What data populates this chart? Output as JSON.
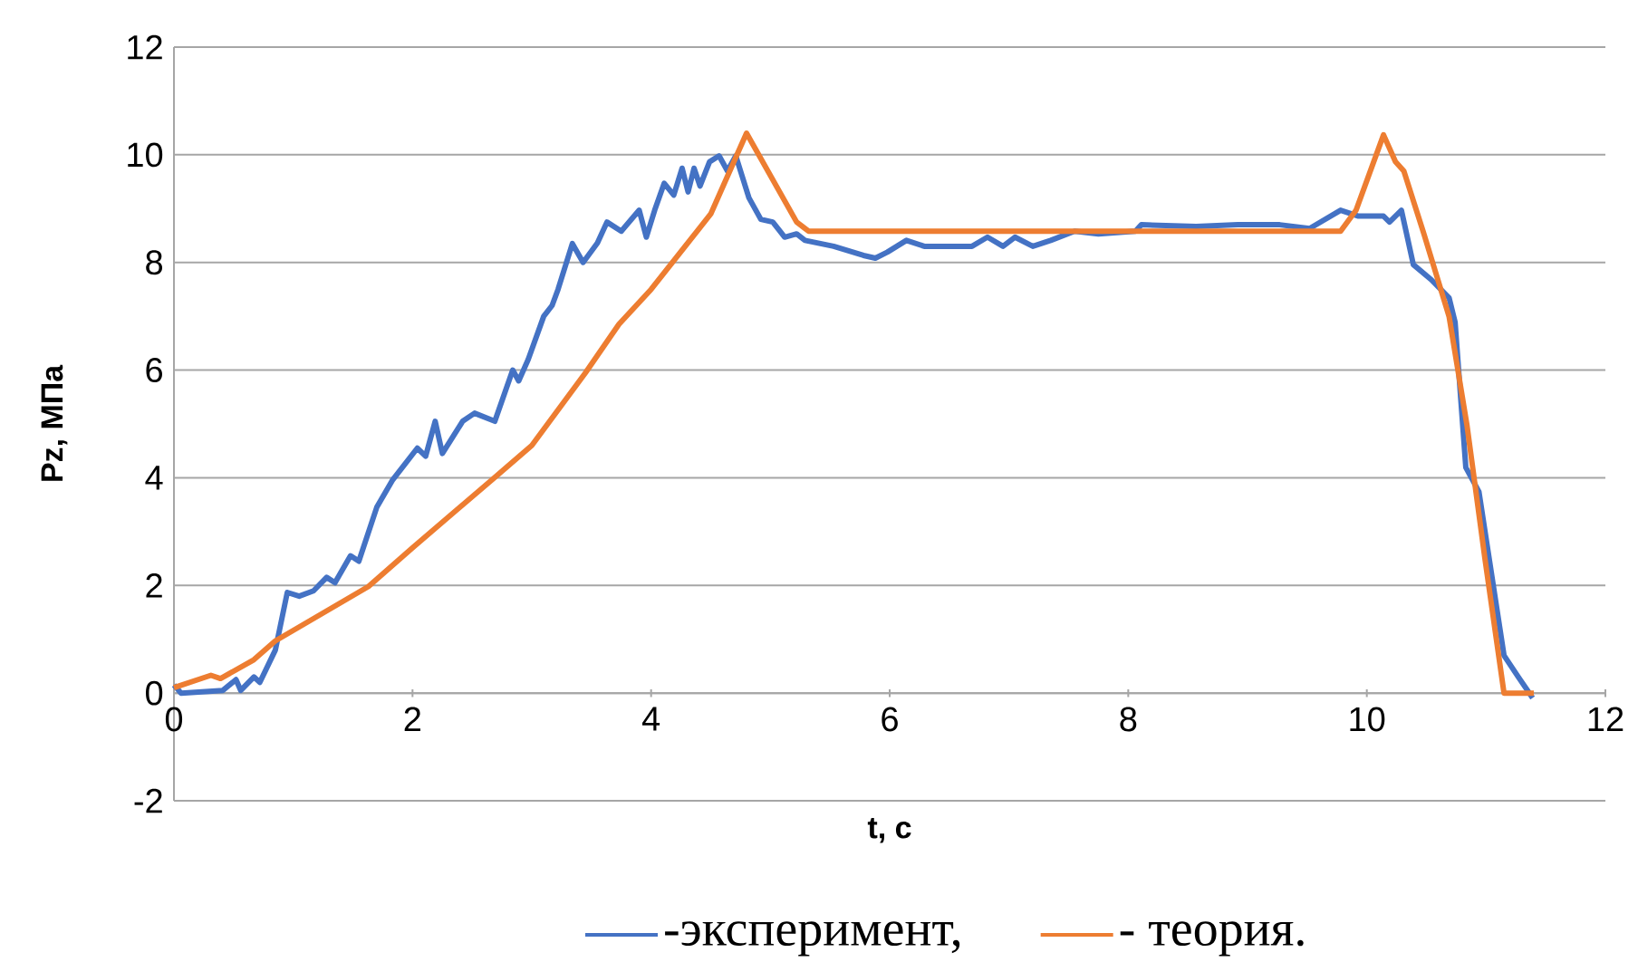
{
  "chart_data": {
    "type": "line",
    "xlabel": "t, с",
    "ylabel": "Pz, МПа",
    "xlim": [
      0,
      12
    ],
    "ylim": [
      -2,
      12
    ],
    "xticks": [
      0,
      2,
      4,
      6,
      8,
      10,
      12
    ],
    "yticks": [
      -2,
      0,
      2,
      4,
      6,
      8,
      10,
      12
    ],
    "grid": "y",
    "legend": "bottom",
    "series": [
      {
        "name": "-эксперимент,",
        "color": "#4472c4",
        "x": [
          0,
          0.06,
          0.41,
          0.52,
          0.56,
          0.67,
          0.72,
          0.85,
          0.95,
          1.05,
          1.17,
          1.28,
          1.35,
          1.48,
          1.55,
          1.7,
          1.83,
          2.04,
          2.11,
          2.19,
          2.25,
          2.42,
          2.52,
          2.69,
          2.84,
          2.89,
          2.97,
          3.1,
          3.17,
          3.22,
          3.34,
          3.43,
          3.55,
          3.63,
          3.75,
          3.9,
          3.96,
          4.03,
          4.11,
          4.19,
          4.26,
          4.31,
          4.36,
          4.41,
          4.49,
          4.57,
          4.64,
          4.71,
          4.82,
          4.92,
          5.02,
          5.12,
          5.22,
          5.29,
          5.53,
          5.78,
          5.88,
          5.98,
          6.14,
          6.29,
          6.69,
          6.82,
          6.95,
          7.05,
          7.2,
          7.35,
          7.55,
          7.75,
          8.06,
          8.11,
          8.57,
          8.92,
          9.27,
          9.52,
          9.78,
          9.93,
          10.14,
          10.19,
          10.29,
          10.39,
          10.54,
          10.69,
          10.74,
          10.83,
          10.94,
          11.15,
          11.27,
          11.39
        ],
        "values": [
          0.15,
          0,
          0.05,
          0.25,
          0.05,
          0.3,
          0.2,
          0.8,
          1.87,
          1.8,
          1.9,
          2.15,
          2.05,
          2.55,
          2.45,
          3.45,
          3.95,
          4.55,
          4.4,
          5.05,
          4.45,
          5.05,
          5.2,
          5.05,
          6.0,
          5.8,
          6.2,
          7.0,
          7.2,
          7.5,
          8.35,
          8.0,
          8.36,
          8.75,
          8.58,
          8.97,
          8.47,
          8.97,
          9.47,
          9.25,
          9.75,
          9.31,
          9.75,
          9.42,
          9.87,
          9.98,
          9.7,
          9.98,
          9.2,
          8.8,
          8.75,
          8.47,
          8.53,
          8.41,
          8.3,
          8.13,
          8.08,
          8.19,
          8.41,
          8.3,
          8.3,
          8.47,
          8.3,
          8.47,
          8.3,
          8.41,
          8.58,
          8.53,
          8.58,
          8.7,
          8.67,
          8.7,
          8.7,
          8.63,
          8.97,
          8.86,
          8.86,
          8.75,
          8.97,
          7.96,
          7.68,
          7.34,
          6.89,
          4.19,
          3.74,
          0.7,
          0.3,
          -0.09
        ]
      },
      {
        "name": "- теория.",
        "color": "#ed7d31",
        "x": [
          0,
          0.31,
          0.39,
          0.67,
          0.85,
          1.63,
          2.0,
          2.67,
          3.0,
          3.45,
          3.73,
          4.0,
          4.5,
          4.8,
          5.22,
          5.32,
          9.78,
          9.91,
          10.14,
          10.24,
          10.31,
          10.48,
          10.69,
          10.84,
          10.99,
          11.15,
          11.4
        ],
        "values": [
          0.1,
          0.33,
          0.27,
          0.62,
          0.97,
          1.98,
          2.7,
          3.97,
          4.6,
          5.95,
          6.85,
          7.5,
          8.9,
          10.4,
          8.75,
          8.58,
          8.58,
          8.97,
          10.37,
          9.87,
          9.7,
          8.52,
          6.99,
          4.97,
          2.5,
          0,
          0
        ]
      }
    ]
  }
}
